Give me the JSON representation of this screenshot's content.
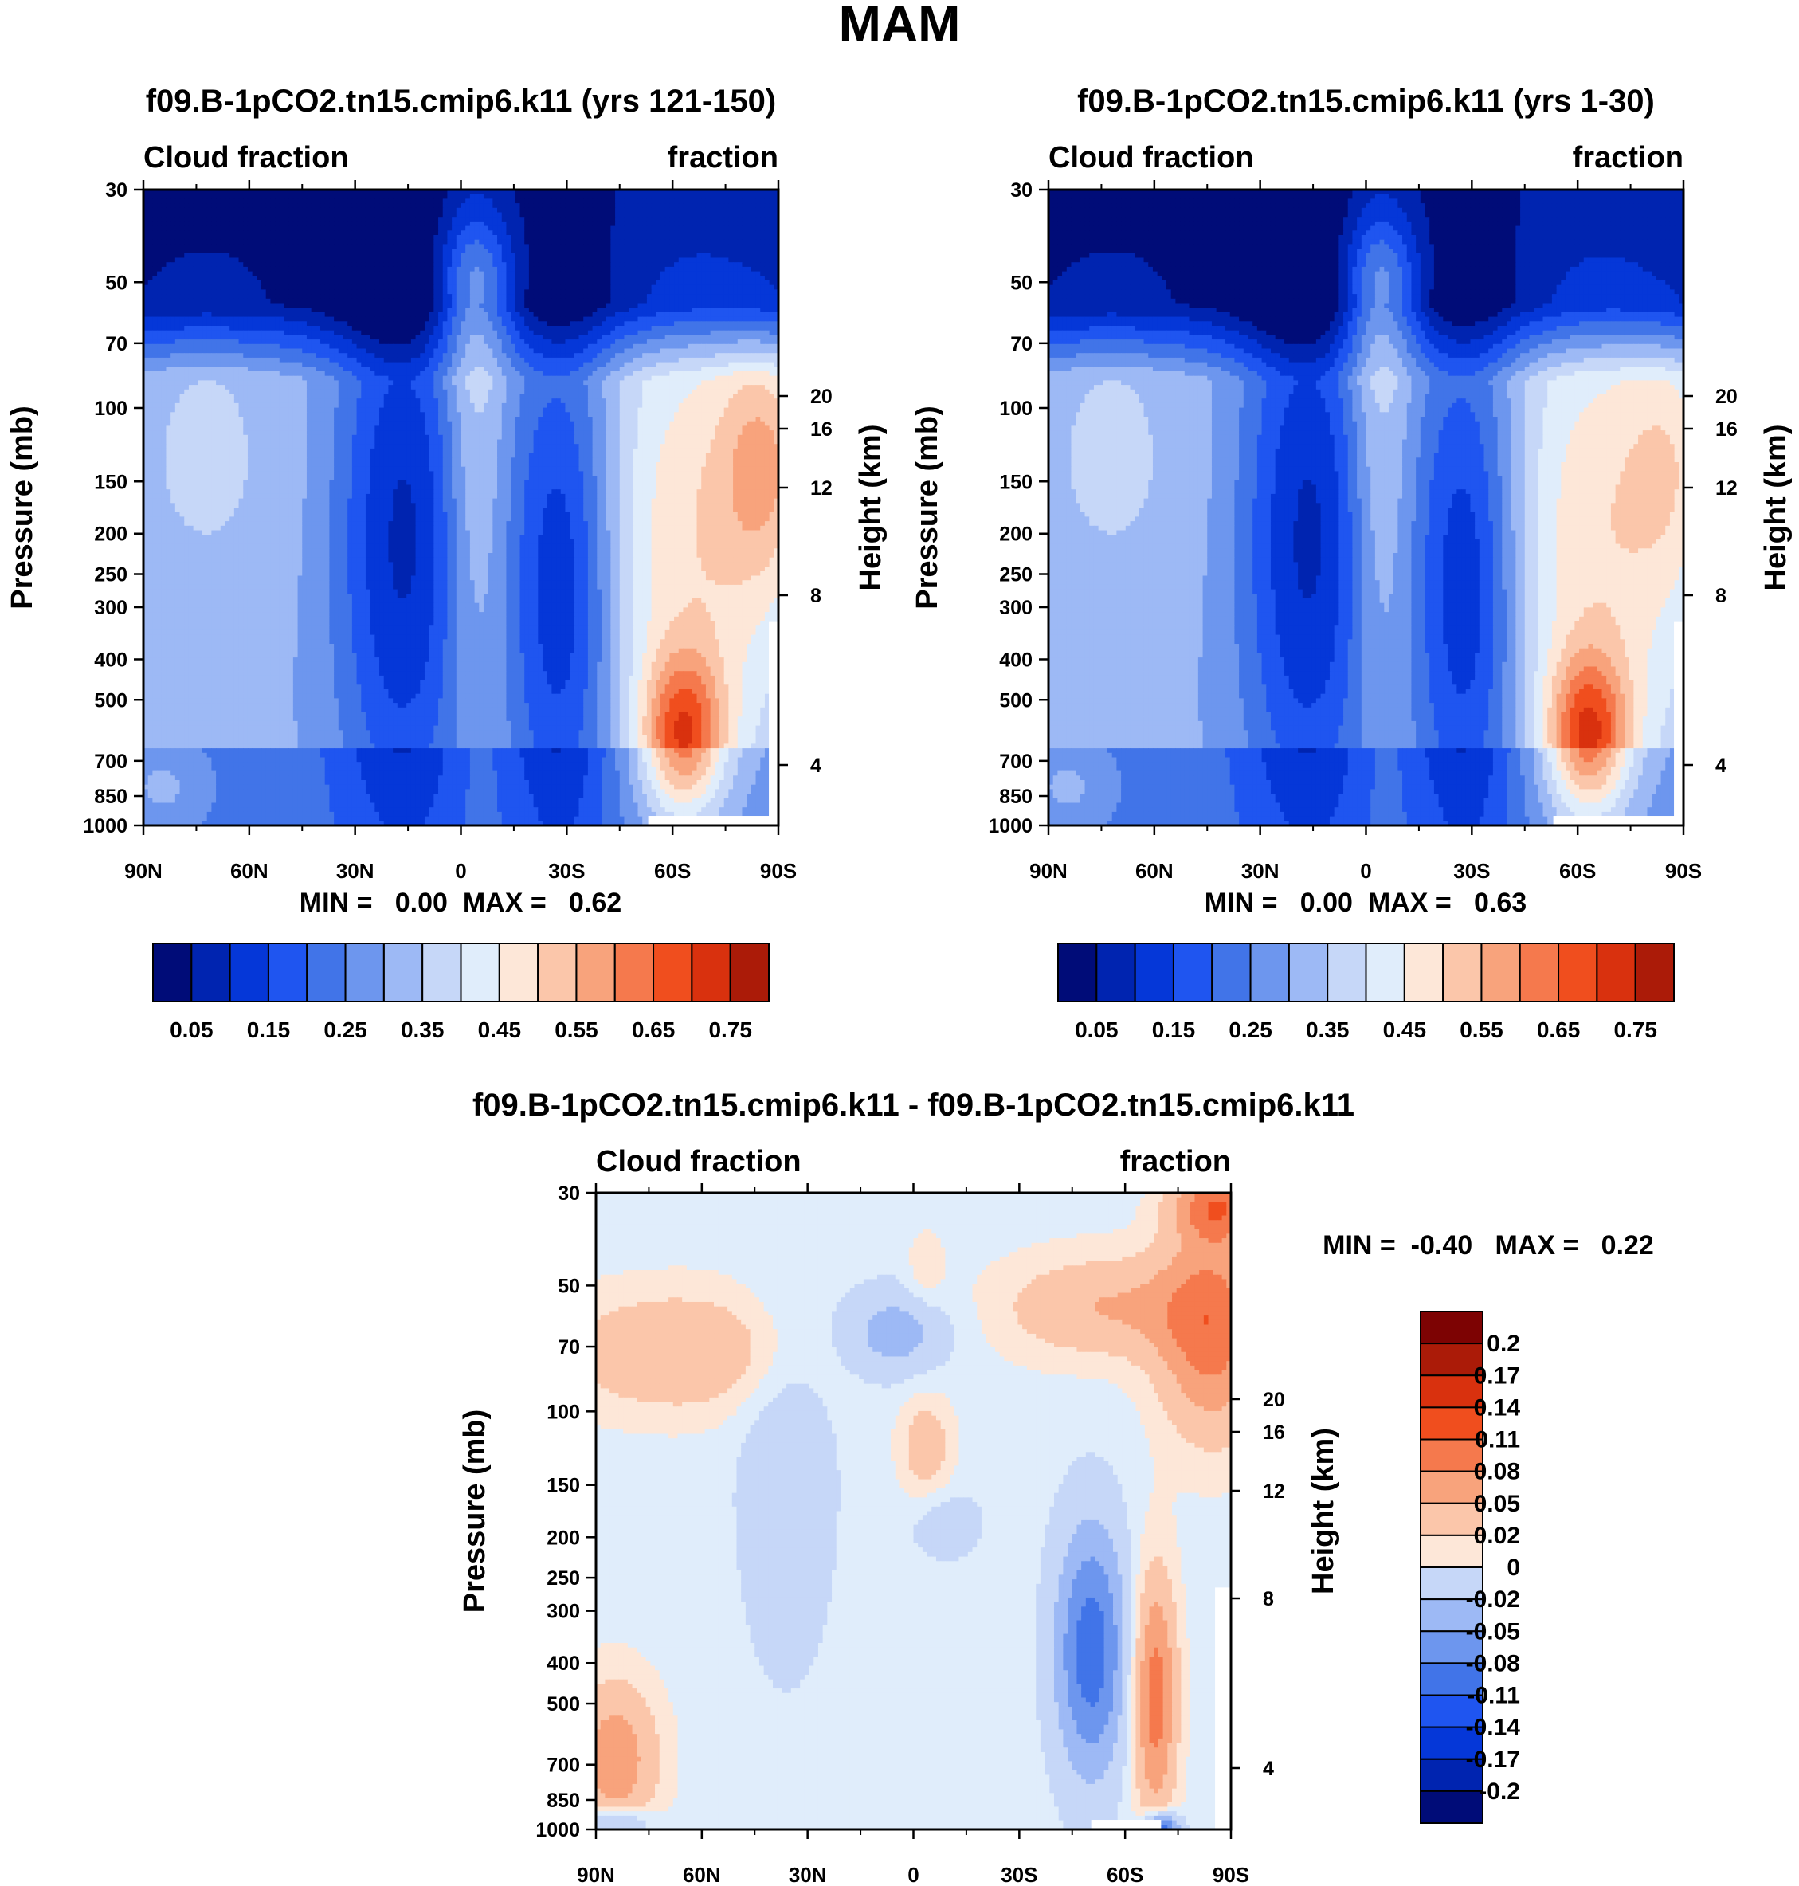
{
  "page": {
    "title": "MAM"
  },
  "palettes": {
    "abs": [
      "#000c78",
      "#0024b0",
      "#0537d8",
      "#1f55f0",
      "#4174e8",
      "#6d96ee",
      "#9db9f5",
      "#c6d7f8",
      "#e0edfb",
      "#fde7d8",
      "#fbc6aa",
      "#f8a37c",
      "#f5794d",
      "#f04e1e",
      "#d9310e",
      "#ab1b08",
      "#7d0303"
    ],
    "diff": [
      "#000c78",
      "#0024b0",
      "#0537d8",
      "#1f55f0",
      "#4174e8",
      "#6d96ee",
      "#9db9f5",
      "#c6d7f8",
      "#e0edfb",
      "#fde7d8",
      "#fbc6aa",
      "#f8a37c",
      "#f5794d",
      "#f04e1e",
      "#d9310e",
      "#ab1b08",
      "#7d0303"
    ]
  },
  "chart_data": [
    {
      "id": "p1",
      "type": "contour",
      "title": "f09.B-1pCO2.tn15.cmip6.k11 (yrs 121-150)",
      "left_label": "Cloud fraction",
      "right_label": "fraction",
      "ylabel": "Pressure (mb)",
      "y2label": "Height (km)",
      "xlabel": "",
      "x_ticks": [
        "90N",
        "60N",
        "30N",
        "0",
        "30S",
        "60S",
        "90S"
      ],
      "x_range": [
        -90,
        90
      ],
      "y_ticks": [
        30,
        50,
        70,
        100,
        150,
        200,
        250,
        300,
        400,
        500,
        700,
        850,
        1000
      ],
      "y_range": [
        30,
        1000
      ],
      "y2_ticks": [
        20,
        16,
        12,
        8,
        4
      ],
      "stats": "MIN =   0.00  MAX =   0.62",
      "colorbar": {
        "orientation": "horizontal",
        "labels": [
          "0.05",
          "0.15",
          "0.25",
          "0.35",
          "0.45",
          "0.55",
          "0.65",
          "0.75"
        ],
        "levels": [
          0,
          0.05,
          0.1,
          0.15,
          0.2,
          0.25,
          0.3,
          0.35,
          0.4,
          0.45,
          0.5,
          0.55,
          0.6,
          0.65,
          0.7,
          0.75,
          0.8
        ]
      }
    },
    {
      "id": "p2",
      "type": "contour",
      "title": "f09.B-1pCO2.tn15.cmip6.k11 (yrs 1-30)",
      "left_label": "Cloud fraction",
      "right_label": "fraction",
      "ylabel": "Pressure (mb)",
      "y2label": "Height (km)",
      "xlabel": "",
      "x_ticks": [
        "90N",
        "60N",
        "30N",
        "0",
        "30S",
        "60S",
        "90S"
      ],
      "x_range": [
        -90,
        90
      ],
      "y_ticks": [
        30,
        50,
        70,
        100,
        150,
        200,
        250,
        300,
        400,
        500,
        700,
        850,
        1000
      ],
      "y_range": [
        30,
        1000
      ],
      "y2_ticks": [
        20,
        16,
        12,
        8,
        4
      ],
      "stats": "MIN =   0.00  MAX =   0.63",
      "colorbar": {
        "orientation": "horizontal",
        "labels": [
          "0.05",
          "0.15",
          "0.25",
          "0.35",
          "0.45",
          "0.55",
          "0.65",
          "0.75"
        ],
        "levels": [
          0,
          0.05,
          0.1,
          0.15,
          0.2,
          0.25,
          0.3,
          0.35,
          0.4,
          0.45,
          0.5,
          0.55,
          0.6,
          0.65,
          0.7,
          0.75,
          0.8
        ]
      }
    },
    {
      "id": "p3",
      "type": "contour",
      "title": "f09.B-1pCO2.tn15.cmip6.k11 - f09.B-1pCO2.tn15.cmip6.k11",
      "left_label": "Cloud fraction",
      "right_label": "fraction",
      "ylabel": "Pressure (mb)",
      "y2label": "Height (km)",
      "xlabel": "",
      "x_ticks": [
        "90N",
        "60N",
        "30N",
        "0",
        "30S",
        "60S",
        "90S"
      ],
      "x_range": [
        -90,
        90
      ],
      "y_ticks": [
        30,
        50,
        70,
        100,
        150,
        200,
        250,
        300,
        400,
        500,
        700,
        850,
        1000
      ],
      "y_range": [
        30,
        1000
      ],
      "y2_ticks": [
        20,
        16,
        12,
        8,
        4
      ],
      "stats": "MIN =  -0.40   MAX =   0.22",
      "colorbar": {
        "orientation": "vertical",
        "labels": [
          "0.2",
          "0.17",
          "0.14",
          "0.11",
          "0.08",
          "0.05",
          "0.02",
          "0",
          "-0.02",
          "-0.05",
          "-0.08",
          "-0.11",
          "-0.14",
          "-0.17",
          "-0.2"
        ]
      }
    }
  ]
}
